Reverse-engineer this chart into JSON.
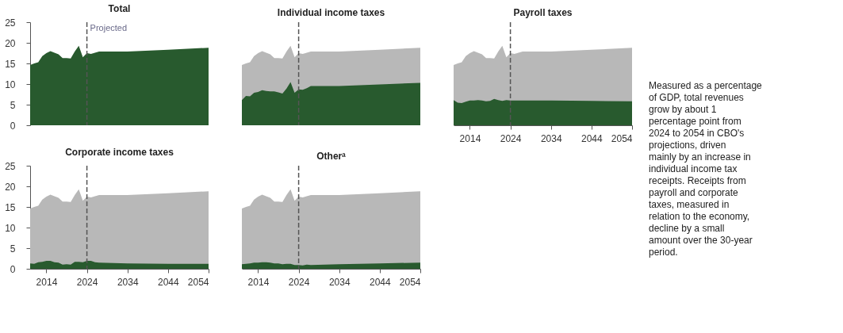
{
  "chart_data": [
    {
      "type": "area",
      "title": "Total",
      "x": [
        2010,
        2011,
        2012,
        2013,
        2014,
        2015,
        2016,
        2017,
        2018,
        2019,
        2020,
        2021,
        2022,
        2023,
        2024,
        2025,
        2026,
        2027,
        2034,
        2044,
        2054
      ],
      "xlim": [
        2010,
        2054
      ],
      "xticks": [
        2014,
        2024,
        2034,
        2044,
        2054
      ],
      "ylim": [
        0,
        25
      ],
      "yticks": [
        0,
        5,
        10,
        15,
        20,
        25
      ],
      "tick_labels": "y",
      "grid": false,
      "series": [
        {
          "color": "#285a2e",
          "values": [
            14.6,
            15.0,
            15.3,
            16.8,
            17.5,
            18.0,
            17.6,
            17.2,
            16.3,
            16.3,
            16.2,
            17.9,
            19.3,
            16.5,
            17.5,
            17.3,
            17.6,
            17.9,
            17.9,
            18.3,
            18.8
          ]
        }
      ],
      "ref_lines": [
        {
          "axis": "x",
          "value": 2024,
          "label": "Projected",
          "line_style": "dashed",
          "color": "#555555"
        }
      ]
    },
    {
      "type": "area",
      "title": "Individual income taxes",
      "x": [
        2010,
        2011,
        2012,
        2013,
        2014,
        2015,
        2016,
        2017,
        2018,
        2019,
        2020,
        2021,
        2022,
        2023,
        2024,
        2025,
        2026,
        2027,
        2034,
        2044,
        2054
      ],
      "xlim": [
        2010,
        2054
      ],
      "xticks": [
        2014,
        2024,
        2034,
        2044,
        2054
      ],
      "ylim": [
        0,
        25
      ],
      "tick_labels": false,
      "grid": false,
      "series": [
        {
          "color": "#b8b8b8",
          "values": [
            14.6,
            15.0,
            15.3,
            16.8,
            17.5,
            18.0,
            17.6,
            17.2,
            16.3,
            16.3,
            16.2,
            17.9,
            19.3,
            16.5,
            17.5,
            17.3,
            17.6,
            17.9,
            17.9,
            18.3,
            18.8
          ]
        },
        {
          "color": "#285a2e",
          "values": [
            6.1,
            7.1,
            7.0,
            7.9,
            8.1,
            8.5,
            8.3,
            8.2,
            8.2,
            8.0,
            7.7,
            8.9,
            10.5,
            7.9,
            8.7,
            8.6,
            9.0,
            9.5,
            9.5,
            9.9,
            10.3
          ]
        }
      ],
      "ref_lines": [
        {
          "axis": "x",
          "value": 2024,
          "line_style": "dashed",
          "color": "#555555"
        }
      ]
    },
    {
      "type": "area",
      "title": "Payroll taxes",
      "x": [
        2010,
        2011,
        2012,
        2013,
        2014,
        2015,
        2016,
        2017,
        2018,
        2019,
        2020,
        2021,
        2022,
        2023,
        2024,
        2025,
        2026,
        2027,
        2034,
        2044,
        2054
      ],
      "xlim": [
        2010,
        2054
      ],
      "xticks": [
        2014,
        2024,
        2034,
        2044,
        2054
      ],
      "ylim": [
        0,
        25
      ],
      "tick_labels": "x",
      "grid": false,
      "series": [
        {
          "color": "#b8b8b8",
          "values": [
            14.6,
            15.0,
            15.3,
            16.8,
            17.5,
            18.0,
            17.6,
            17.2,
            16.3,
            16.3,
            16.2,
            17.9,
            19.3,
            16.5,
            17.5,
            17.3,
            17.6,
            17.9,
            17.9,
            18.3,
            18.8
          ]
        },
        {
          "color": "#285a2e",
          "values": [
            6.1,
            5.5,
            5.4,
            5.7,
            6.0,
            6.0,
            6.1,
            6.0,
            5.8,
            5.9,
            6.4,
            6.1,
            5.9,
            6.1,
            6.0,
            6.0,
            6.0,
            6.0,
            6.0,
            5.9,
            5.8
          ]
        }
      ],
      "ref_lines": [
        {
          "axis": "x",
          "value": 2024,
          "line_style": "dashed",
          "color": "#555555"
        }
      ]
    },
    {
      "type": "area",
      "title": "Corporate income taxes",
      "x": [
        2010,
        2011,
        2012,
        2013,
        2014,
        2015,
        2016,
        2017,
        2018,
        2019,
        2020,
        2021,
        2022,
        2023,
        2024,
        2025,
        2026,
        2027,
        2034,
        2044,
        2054
      ],
      "xlim": [
        2010,
        2054
      ],
      "xticks": [
        2014,
        2024,
        2034,
        2044,
        2054
      ],
      "ylim": [
        0,
        25
      ],
      "yticks": [
        0,
        5,
        10,
        15,
        20,
        25
      ],
      "grid": false,
      "series": [
        {
          "color": "#b8b8b8",
          "values": [
            14.6,
            15.0,
            15.3,
            16.8,
            17.5,
            18.0,
            17.6,
            17.2,
            16.3,
            16.3,
            16.2,
            17.9,
            19.3,
            16.5,
            17.5,
            17.3,
            17.6,
            17.9,
            17.9,
            18.3,
            18.8
          ]
        },
        {
          "color": "#285a2e",
          "values": [
            1.3,
            1.2,
            1.6,
            1.7,
            1.9,
            1.9,
            1.6,
            1.5,
            1.0,
            1.1,
            1.0,
            1.7,
            1.7,
            1.6,
            1.9,
            1.9,
            1.6,
            1.5,
            1.3,
            1.2,
            1.2
          ]
        }
      ],
      "ref_lines": [
        {
          "axis": "x",
          "value": 2024,
          "line_style": "dashed",
          "color": "#555555"
        }
      ]
    },
    {
      "type": "area",
      "title": "Otherᵃ",
      "x": [
        2010,
        2011,
        2012,
        2013,
        2014,
        2015,
        2016,
        2017,
        2018,
        2019,
        2020,
        2021,
        2022,
        2023,
        2024,
        2025,
        2026,
        2027,
        2034,
        2044,
        2054
      ],
      "xlim": [
        2010,
        2054
      ],
      "xticks": [
        2014,
        2024,
        2034,
        2044,
        2054
      ],
      "ylim": [
        0,
        25
      ],
      "tick_labels": "x",
      "grid": false,
      "series": [
        {
          "color": "#b8b8b8",
          "values": [
            14.6,
            15.0,
            15.3,
            16.8,
            17.5,
            18.0,
            17.6,
            17.2,
            16.3,
            16.3,
            16.2,
            17.9,
            19.3,
            16.5,
            17.5,
            17.3,
            17.6,
            17.9,
            17.9,
            18.3,
            18.8
          ]
        },
        {
          "color": "#285a2e",
          "values": [
            1.1,
            1.2,
            1.3,
            1.5,
            1.5,
            1.6,
            1.6,
            1.5,
            1.3,
            1.3,
            1.1,
            1.2,
            1.2,
            0.9,
            0.9,
            0.8,
            1.0,
            0.9,
            1.1,
            1.3,
            1.5
          ]
        }
      ],
      "ref_lines": [
        {
          "axis": "x",
          "value": 2024,
          "line_style": "dashed",
          "color": "#555555"
        }
      ]
    },
    {
      "type": "other",
      "annotations": [
        "Measured as a percentage of GDP, total revenues grow by about 1 percentage point from 2024 to 2054 in CBO's projections, driven mainly by an increase in individual income tax receipts. Receipts from payroll and corporate taxes, measured in relation to the economy, decline by a small amount over the 30-year period."
      ]
    }
  ]
}
